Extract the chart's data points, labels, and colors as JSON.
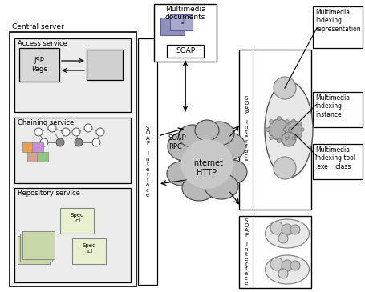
{
  "bg_color": "#ffffff",
  "central_server_label": "Central server",
  "access_service_label": "Access service",
  "chaining_service_label": "Chaining service",
  "repository_service_label": "Repository service",
  "jsp_label": "JSP\nPage",
  "soap_label": "SOAP",
  "soap_rpc_label": "SOAP\nRPC",
  "soap_iface_text": "S\nO\nA\nP\n \nI\nn\nt\ne\nr\nf\na\nc\ne",
  "internet_label": "Internet\nHTTP",
  "multimedia_docs_label": "Multimedia\ndocuments",
  "mm_indexing_repr": "Multimedia\nindexing\nrepresentation",
  "mm_indexing_instance": "Multimedia\nindexing\ninstance",
  "mm_indexing_tool": "Multimedia\nindexing tool\n.exe   .class",
  "spec_label": "Spec\n.cl"
}
